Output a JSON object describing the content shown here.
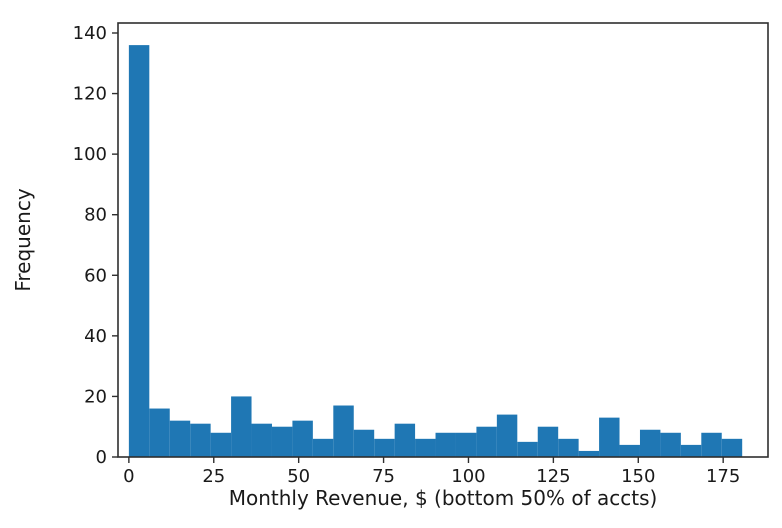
{
  "chart_data": {
    "type": "bar",
    "subtype": "histogram",
    "title": "",
    "xlabel": "Monthly Revenue, $ (bottom 50% of accts)",
    "ylabel": "Frequency",
    "bin_start": 0,
    "bin_width": 6.02,
    "values": [
      136,
      16,
      12,
      11,
      8,
      20,
      11,
      10,
      12,
      6,
      17,
      9,
      6,
      11,
      6,
      8,
      8,
      10,
      14,
      5,
      10,
      6,
      2,
      13,
      4,
      9,
      8,
      4,
      8,
      6
    ],
    "xticks": [
      0,
      25,
      50,
      75,
      100,
      125,
      150,
      175
    ],
    "yticks": [
      0,
      20,
      40,
      60,
      80,
      100,
      120,
      140
    ],
    "xlim": [
      -3.2,
      188.2
    ],
    "ylim": [
      0,
      143.3
    ],
    "bar_color": "#1f77b4",
    "axis_color": "#2e2e2e",
    "tick_label_color": "#1a1a1a",
    "background": "#ffffff",
    "grid": false,
    "legend": null
  }
}
